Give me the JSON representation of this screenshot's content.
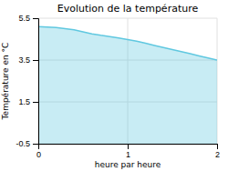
{
  "chart_data": {
    "type": "area",
    "title": "Evolution de la température",
    "xlabel": "heure par heure",
    "ylabel": "Température en °C",
    "x": [
      0,
      0.1,
      0.2,
      0.3,
      0.4,
      0.5,
      0.6,
      0.7,
      0.8,
      0.9,
      1.0,
      1.1,
      1.2,
      1.3,
      1.4,
      1.5,
      1.6,
      1.7,
      1.8,
      1.9,
      2.0
    ],
    "values": [
      5.1,
      5.08,
      5.05,
      5.0,
      4.95,
      4.85,
      4.75,
      4.68,
      4.62,
      4.55,
      4.48,
      4.4,
      4.3,
      4.2,
      4.1,
      4.0,
      3.9,
      3.8,
      3.7,
      3.6,
      3.5
    ],
    "color": "#60c8e0",
    "xlim": [
      0,
      2
    ],
    "ylim": [
      -0.5,
      5.5
    ],
    "xticks": [
      0,
      1,
      2
    ],
    "yticks": [
      -0.5,
      1.5,
      3.5,
      5.5
    ],
    "grid": true
  }
}
